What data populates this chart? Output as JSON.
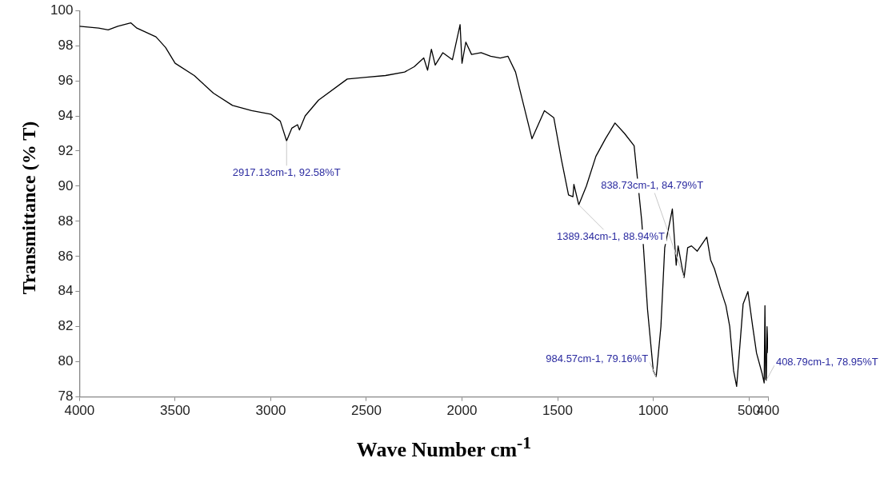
{
  "chart_data": {
    "type": "line",
    "xlabel": "Wave Number cm$^{-1}$",
    "ylabel": "Transmittance (% T)",
    "series": [
      {
        "color": "#000000",
        "x": [
          4000,
          3900,
          3850,
          3800,
          3732,
          3700,
          3600,
          3550,
          3500,
          3400,
          3300,
          3200,
          3100,
          3000,
          2950,
          2917.13,
          2890,
          2860,
          2850,
          2820,
          2750,
          2600,
          2500,
          2400,
          2300,
          2250,
          2200,
          2180,
          2160,
          2140,
          2100,
          2050,
          2010,
          2000,
          1980,
          1950,
          1900,
          1850,
          1800,
          1760,
          1720,
          1700,
          1634,
          1569,
          1520,
          1480,
          1443,
          1420,
          1415,
          1389.34,
          1350,
          1300,
          1250,
          1200,
          1150,
          1100,
          1060,
          1030,
          1000,
          984.57,
          960,
          940,
          900,
          880,
          870,
          850,
          838.73,
          820,
          800,
          770,
          720,
          700,
          680,
          650,
          620,
          600,
          580,
          564,
          550,
          530,
          505,
          480,
          460,
          430,
          420,
          416,
          412,
          408.79,
          405,
          400
        ],
        "values": [
          99.1,
          99.0,
          98.9,
          99.1,
          99.3,
          99.0,
          98.5,
          97.9,
          97.0,
          96.3,
          95.3,
          94.6,
          94.3,
          94.1,
          93.7,
          92.58,
          93.3,
          93.5,
          93.2,
          94.0,
          94.9,
          96.1,
          96.2,
          96.3,
          96.5,
          96.8,
          97.3,
          96.6,
          97.8,
          96.9,
          97.6,
          97.2,
          99.2,
          97.0,
          98.2,
          97.5,
          97.6,
          97.4,
          97.3,
          97.4,
          96.5,
          95.6,
          92.7,
          94.3,
          93.9,
          91.5,
          89.5,
          89.4,
          90.1,
          88.94,
          90.0,
          91.7,
          92.7,
          93.6,
          93.0,
          92.3,
          88.0,
          83.0,
          79.5,
          79.16,
          82.0,
          86.5,
          88.7,
          85.5,
          86.6,
          85.4,
          84.79,
          86.5,
          86.6,
          86.3,
          87.1,
          85.8,
          85.3,
          84.2,
          83.2,
          82.0,
          79.5,
          78.6,
          80.5,
          83.3,
          84.0,
          82.0,
          80.5,
          79.3,
          78.8,
          83.2,
          79.0,
          78.95,
          82.0,
          80.5
        ]
      }
    ],
    "xlim": [
      4000,
      400
    ],
    "xticks": [
      4000,
      3500,
      3000,
      2500,
      2000,
      1500,
      1000,
      500,
      400
    ],
    "ylim": [
      78,
      100
    ],
    "yticks": [
      78,
      80,
      82,
      84,
      86,
      88,
      90,
      92,
      94,
      96,
      98,
      100
    ],
    "grid": false,
    "legend": false,
    "marker": "none",
    "line_style": "solid",
    "annotations": [
      {
        "text": "2917.13cm-1, 92.58%T",
        "x": 2917.13,
        "y": 92.58
      },
      {
        "text": "1389.34cm-1, 88.94%T",
        "x": 1389.34,
        "y": 88.94
      },
      {
        "text": "838.73cm-1, 84.79%T",
        "x": 838.73,
        "y": 84.79
      },
      {
        "text": "984.57cm-1, 79.16%T",
        "x": 984.57,
        "y": 79.16
      },
      {
        "text": "408.79cm-1, 78.95%T",
        "x": 408.79,
        "y": 78.95
      }
    ]
  }
}
